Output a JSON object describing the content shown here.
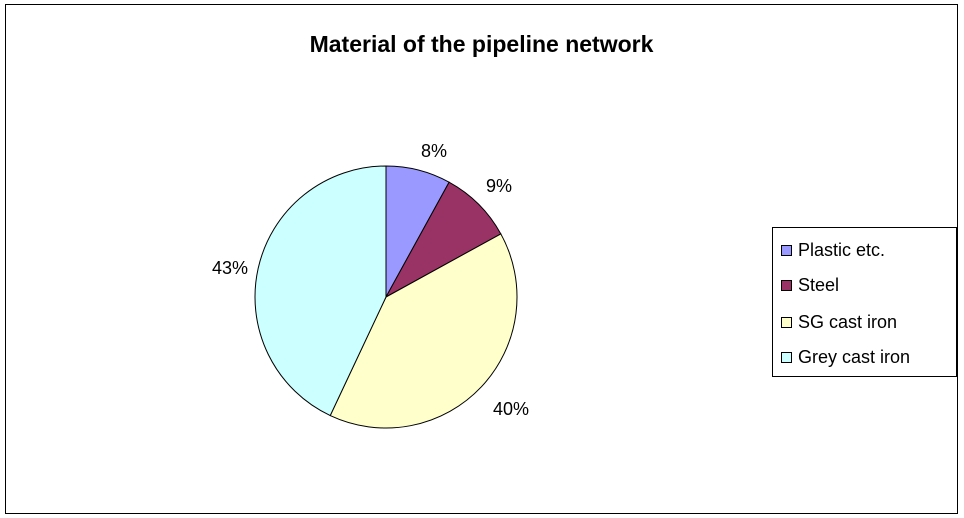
{
  "chart_data": {
    "type": "pie",
    "title": "Material of the pipeline network",
    "categories": [
      "Plastic etc.",
      "Steel",
      "SG cast iron",
      "Grey cast iron"
    ],
    "values": [
      8,
      9,
      40,
      43
    ],
    "labels": [
      "8%",
      "9%",
      "40%",
      "43%"
    ],
    "colors": [
      "#9999FF",
      "#993366",
      "#FFFFCC",
      "#CCFFFF"
    ],
    "start_angle_deg": 0,
    "direction": "clockwise",
    "legend_position": "right"
  }
}
